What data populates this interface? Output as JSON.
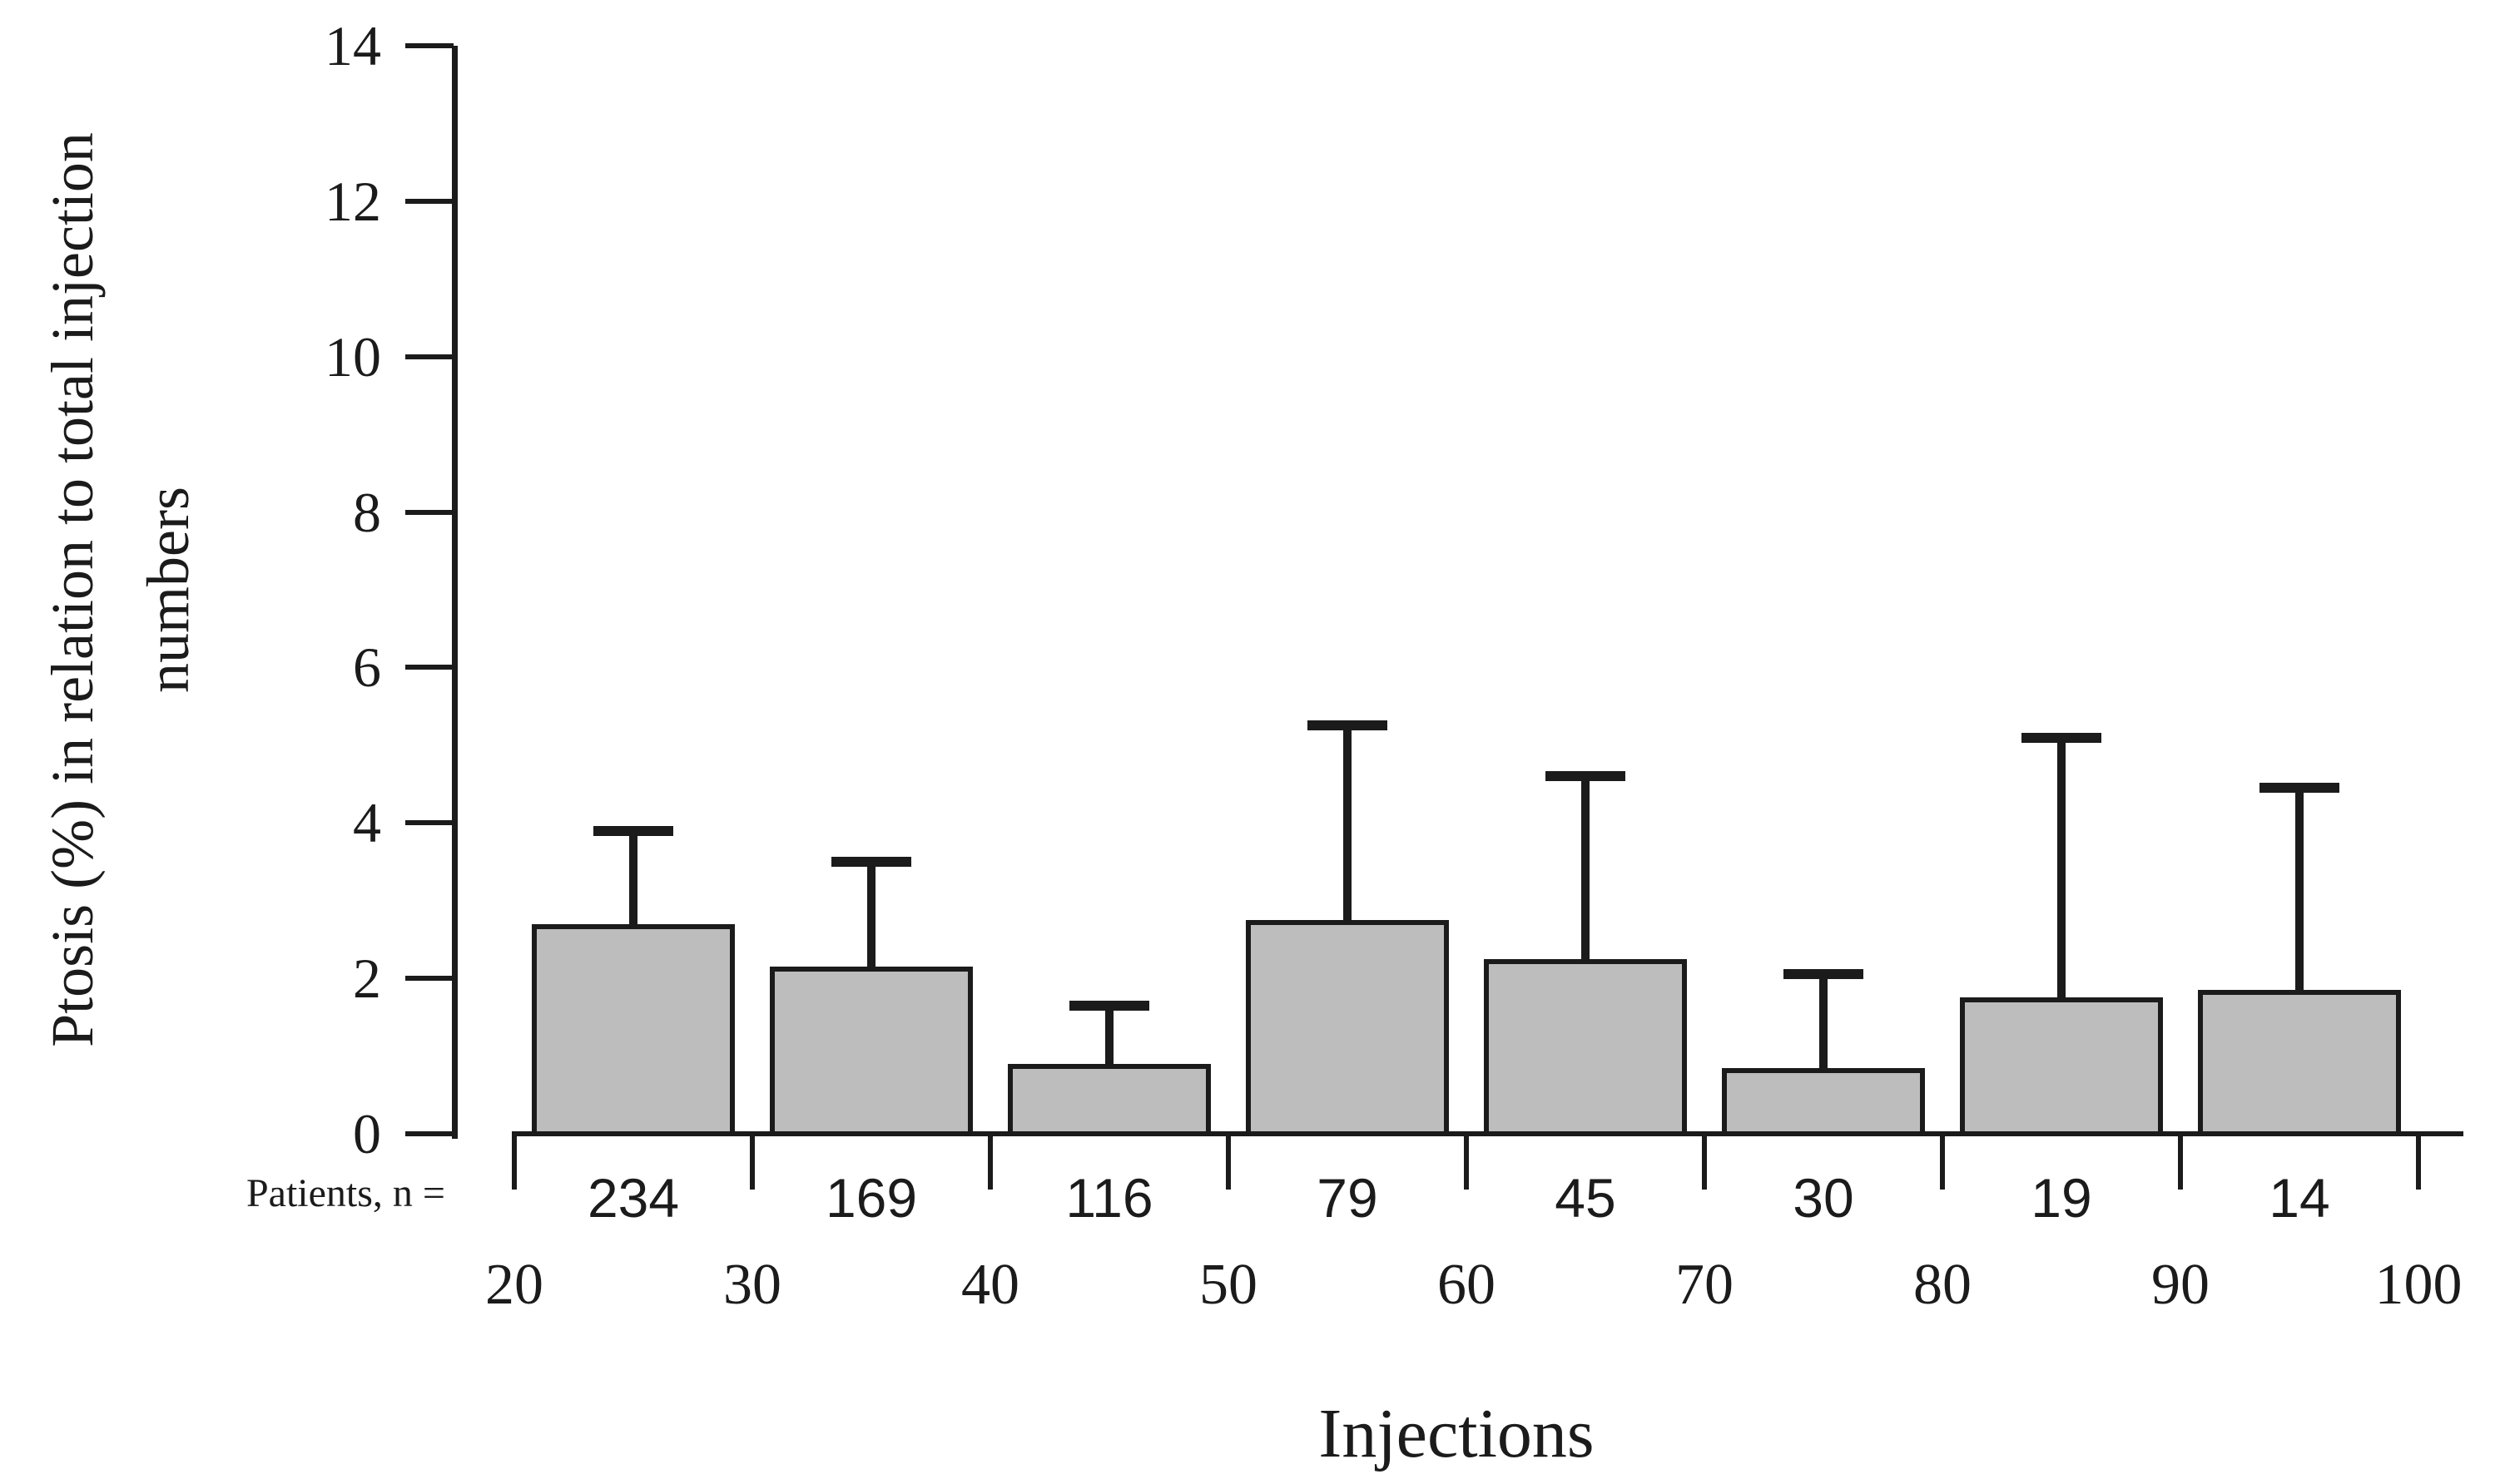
{
  "figure": {
    "y_axis_title_line1": "Ptosis (%) in relation to total injection",
    "y_axis_title_line2": "numbers",
    "x_axis_title": "Injections",
    "patients_row_label": "Patients, n ="
  },
  "chart_data": {
    "type": "bar",
    "title": "",
    "xlabel": "Injections",
    "ylabel": "Ptosis (%) in relation to total injection numbers",
    "ylim": [
      0,
      14
    ],
    "yticks": [
      0,
      2,
      4,
      6,
      8,
      10,
      12,
      14
    ],
    "grid": false,
    "legend": "none",
    "bin_edges": [
      20,
      30,
      40,
      50,
      60,
      70,
      80,
      90,
      100
    ],
    "categories": [
      "20-30",
      "30-40",
      "40-50",
      "50-60",
      "60-70",
      "70-80",
      "80-90",
      "90-100"
    ],
    "values": [
      2.7,
      2.15,
      0.9,
      2.75,
      2.25,
      0.85,
      1.75,
      1.85
    ],
    "error_top": [
      3.9,
      3.5,
      1.65,
      5.25,
      4.6,
      2.05,
      5.1,
      4.45
    ],
    "patients_n": [
      234,
      169,
      116,
      79,
      45,
      30,
      19,
      14
    ],
    "bar_fill_color": "#bdbdbd",
    "line_color": "#1b1b1b"
  }
}
